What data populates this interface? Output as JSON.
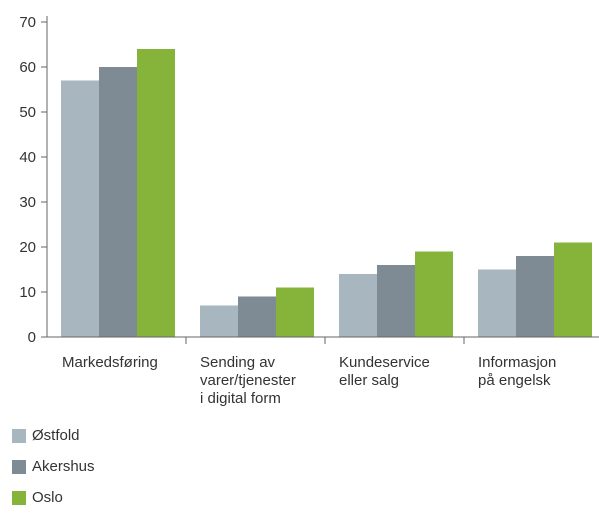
{
  "chart_data": {
    "type": "bar",
    "categories": [
      [
        "Markedsføring"
      ],
      [
        "Sending av",
        "varer/tjenester",
        "i digital form"
      ],
      [
        "Kundeservice",
        "eller salg"
      ],
      [
        "Informasjon",
        "på engelsk"
      ]
    ],
    "series": [
      {
        "name": "Østfold",
        "color": "#a7b6bf",
        "values": [
          57,
          7,
          14,
          15
        ]
      },
      {
        "name": "Akershus",
        "color": "#7e8a94",
        "values": [
          60,
          9,
          16,
          18
        ]
      },
      {
        "name": "Oslo",
        "color": "#86b43a",
        "values": [
          64,
          11,
          19,
          21
        ]
      }
    ],
    "ylim": [
      0,
      70
    ],
    "yticks": [
      "0",
      "10",
      "20",
      "30",
      "40",
      "50",
      "60",
      "70"
    ],
    "grid": false,
    "legend_position": "bottom-left"
  }
}
